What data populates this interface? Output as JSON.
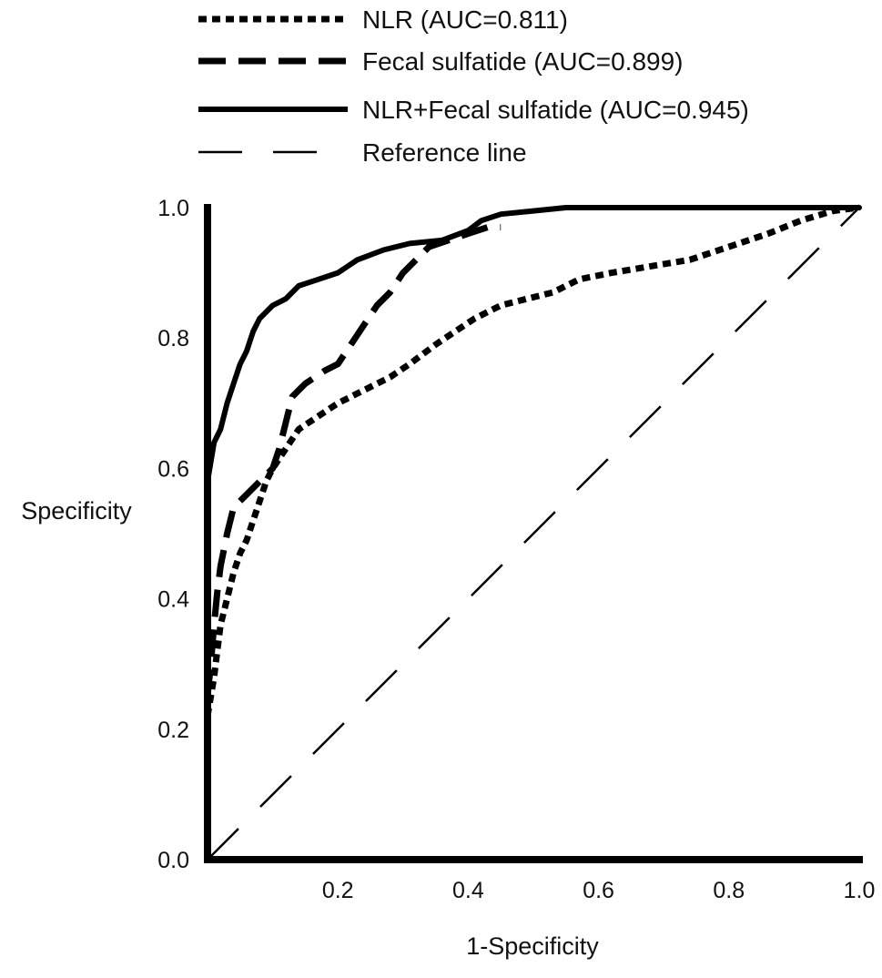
{
  "chart_data": {
    "type": "line",
    "title": "",
    "xlabel": "1-Specificity",
    "ylabel": "Specificity",
    "xlim": [
      0,
      1
    ],
    "ylim": [
      0,
      1
    ],
    "grid": false,
    "legend_position": "top",
    "x_ticks": [
      {
        "value": 0.2,
        "label": "0.2"
      },
      {
        "value": 0.4,
        "label": "0.4"
      },
      {
        "value": 0.6,
        "label": "0.6"
      },
      {
        "value": 0.8,
        "label": "0.8"
      },
      {
        "value": 1.0,
        "label": "1.0"
      }
    ],
    "y_ticks": [
      {
        "value": 0.0,
        "label": "0.0"
      },
      {
        "value": 0.2,
        "label": "0.2"
      },
      {
        "value": 0.4,
        "label": "0.4"
      },
      {
        "value": 0.6,
        "label": "0.6"
      },
      {
        "value": 0.8,
        "label": "0.8"
      },
      {
        "value": 1.0,
        "label": "1.0"
      }
    ],
    "series": [
      {
        "name": "NLR (AUC=0.811)",
        "style": "dotted",
        "color": "#000000",
        "points": [
          [
            0.0,
            0.22
          ],
          [
            0.005,
            0.25
          ],
          [
            0.01,
            0.28
          ],
          [
            0.015,
            0.32
          ],
          [
            0.02,
            0.36
          ],
          [
            0.03,
            0.4
          ],
          [
            0.04,
            0.44
          ],
          [
            0.05,
            0.47
          ],
          [
            0.06,
            0.49
          ],
          [
            0.07,
            0.52
          ],
          [
            0.08,
            0.55
          ],
          [
            0.09,
            0.58
          ],
          [
            0.1,
            0.6
          ],
          [
            0.12,
            0.63
          ],
          [
            0.14,
            0.66
          ],
          [
            0.17,
            0.68
          ],
          [
            0.2,
            0.7
          ],
          [
            0.24,
            0.72
          ],
          [
            0.28,
            0.74
          ],
          [
            0.31,
            0.76
          ],
          [
            0.35,
            0.79
          ],
          [
            0.38,
            0.81
          ],
          [
            0.41,
            0.83
          ],
          [
            0.45,
            0.85
          ],
          [
            0.49,
            0.86
          ],
          [
            0.53,
            0.87
          ],
          [
            0.57,
            0.89
          ],
          [
            0.62,
            0.9
          ],
          [
            0.68,
            0.91
          ],
          [
            0.74,
            0.92
          ],
          [
            0.8,
            0.94
          ],
          [
            0.86,
            0.96
          ],
          [
            0.91,
            0.98
          ],
          [
            0.96,
            0.995
          ],
          [
            1.0,
            1.0
          ]
        ]
      },
      {
        "name": "Fecal sulfatide (AUC=0.899)",
        "style": "dashed",
        "color": "#000000",
        "points": [
          [
            0.0,
            0.25
          ],
          [
            0.005,
            0.3
          ],
          [
            0.01,
            0.36
          ],
          [
            0.015,
            0.41
          ],
          [
            0.02,
            0.45
          ],
          [
            0.03,
            0.5
          ],
          [
            0.04,
            0.54
          ],
          [
            0.06,
            0.56
          ],
          [
            0.08,
            0.58
          ],
          [
            0.1,
            0.6
          ],
          [
            0.11,
            0.63
          ],
          [
            0.12,
            0.67
          ],
          [
            0.13,
            0.71
          ],
          [
            0.15,
            0.73
          ],
          [
            0.18,
            0.75
          ],
          [
            0.2,
            0.76
          ],
          [
            0.22,
            0.79
          ],
          [
            0.24,
            0.82
          ],
          [
            0.26,
            0.85
          ],
          [
            0.28,
            0.87
          ],
          [
            0.3,
            0.9
          ],
          [
            0.32,
            0.92
          ],
          [
            0.34,
            0.94
          ],
          [
            0.37,
            0.95
          ],
          [
            0.4,
            0.96
          ],
          [
            0.43,
            0.97
          ],
          [
            0.45,
            0.97
          ]
        ]
      },
      {
        "name": "NLR+Fecal sulfatide (AUC=0.945)",
        "style": "solid",
        "color": "#000000",
        "points": [
          [
            0.0,
            0.58
          ],
          [
            0.005,
            0.61
          ],
          [
            0.01,
            0.64
          ],
          [
            0.02,
            0.66
          ],
          [
            0.03,
            0.7
          ],
          [
            0.04,
            0.73
          ],
          [
            0.05,
            0.76
          ],
          [
            0.06,
            0.78
          ],
          [
            0.07,
            0.81
          ],
          [
            0.08,
            0.83
          ],
          [
            0.09,
            0.84
          ],
          [
            0.1,
            0.85
          ],
          [
            0.12,
            0.86
          ],
          [
            0.14,
            0.88
          ],
          [
            0.17,
            0.89
          ],
          [
            0.2,
            0.9
          ],
          [
            0.23,
            0.92
          ],
          [
            0.27,
            0.935
          ],
          [
            0.31,
            0.945
          ],
          [
            0.36,
            0.95
          ],
          [
            0.4,
            0.965
          ],
          [
            0.42,
            0.98
          ],
          [
            0.45,
            0.99
          ],
          [
            0.5,
            0.995
          ],
          [
            0.55,
            1.0
          ],
          [
            0.7,
            1.0
          ],
          [
            0.85,
            1.0
          ],
          [
            1.0,
            1.0
          ]
        ]
      },
      {
        "name": "Reference line",
        "style": "longdash",
        "color": "#000000",
        "points": [
          [
            0.0,
            0.0
          ],
          [
            1.0,
            1.0
          ]
        ]
      }
    ]
  }
}
